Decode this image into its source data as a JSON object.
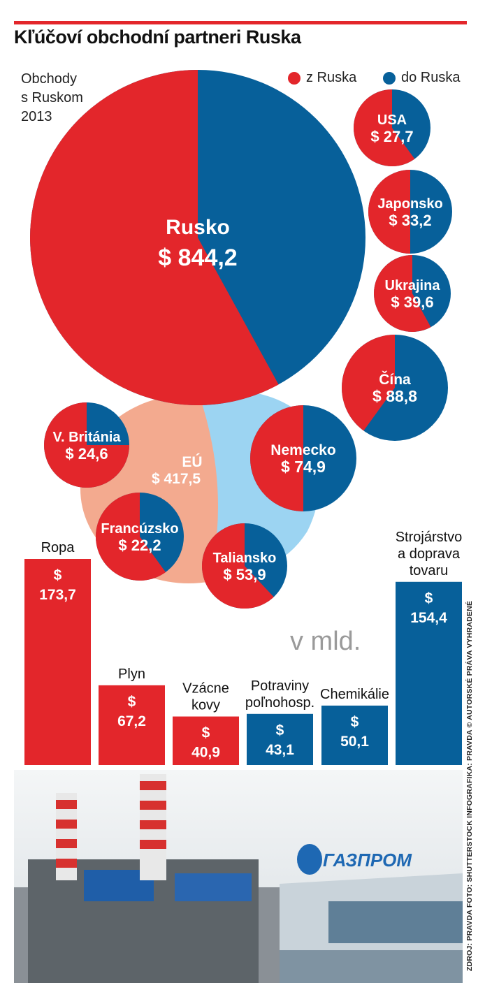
{
  "title": "Kľúčoví obchodní partneri Ruska",
  "subtitle": "Obchody\ns Ruskom\n2013",
  "legend": {
    "from_label": "z Ruska",
    "to_label": "do Ruska"
  },
  "colors": {
    "from": "#e3262b",
    "to": "#07609a",
    "eu_left": "#f3aa8f",
    "eu_right": "#9cd4f2"
  },
  "unit_note": "v mld.",
  "source": "ZDROJ: PRAVDA FOTO: SHUTTERSTOCK INFOGRAFIKA: PRAVDA © AUTORSKÉ PRÁVA VYHRADENÉ",
  "chart_data": [
    {
      "type": "pie",
      "title": "Obchody s Ruskom 2013",
      "series_names": [
        "z Ruska",
        "do Ruska"
      ],
      "partners": [
        {
          "name": "Rusko",
          "value_label": "$ 844,2",
          "value": 844.2,
          "share_from": 0.58
        },
        {
          "name": "USA",
          "value_label": "$ 27,7",
          "value": 27.7,
          "share_from": 0.6
        },
        {
          "name": "Japonsko",
          "value_label": "$ 33,2",
          "value": 33.2,
          "share_from": 0.5
        },
        {
          "name": "Ukrajina",
          "value_label": "$ 39,6",
          "value": 39.6,
          "share_from": 0.58
        },
        {
          "name": "Čína",
          "value_label": "$ 88,8",
          "value": 88.8,
          "share_from": 0.4
        },
        {
          "name": "V. Británia",
          "value_label": "$ 24,6",
          "value": 24.6,
          "share_from": 0.75
        },
        {
          "name": "Nemecko",
          "value_label": "$ 74,9",
          "value": 74.9,
          "share_from": 0.5
        },
        {
          "name": "EÚ",
          "value_label": "$ 417,5",
          "value": 417.5
        },
        {
          "name": "Francúzsko",
          "value_label": "$ 22,2",
          "value": 22.2,
          "share_from": 0.6
        },
        {
          "name": "Taliansko",
          "value_label": "$ 53,9",
          "value": 53.9,
          "share_from": 0.62
        }
      ]
    },
    {
      "type": "bar",
      "unit": "v mld.",
      "categories": [
        "Ropa",
        "Plyn",
        "Vzácne kovy",
        "Potraviny poľnohosp.",
        "Chemikálie",
        "Strojárstvo a doprava tovaru"
      ],
      "values": [
        173.7,
        67.2,
        40.9,
        43.1,
        50.1,
        154.4
      ],
      "value_labels": [
        "$ 173,7",
        "$ 67,2",
        "$ 40,9",
        "$ 43,1",
        "$ 50,1",
        "$ 154,4"
      ],
      "direction": [
        "z Ruska",
        "z Ruska",
        "z Ruska",
        "do Ruska",
        "do Ruska",
        "do Ruska"
      ]
    }
  ]
}
